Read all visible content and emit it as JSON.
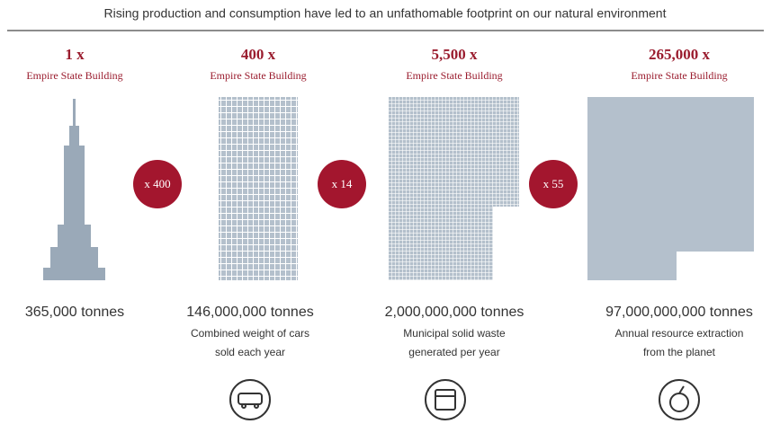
{
  "title": "Rising production and consumption have led to an unfathomable footprint on our natural environment",
  "panels": [
    {
      "multiple": "1 x",
      "unit": "Empire State Building",
      "amount": "365,000 tonnes",
      "description": []
    },
    {
      "multiple": "400 x",
      "unit": "Empire State Building",
      "amount": "146,000,000 tonnes",
      "description": [
        "Combined weight of cars",
        "sold each year"
      ]
    },
    {
      "multiple": "5,500 x",
      "unit": "Empire State Building",
      "amount": "2,000,000,000 tonnes",
      "description": [
        "Municipal solid waste",
        "generated per year"
      ]
    },
    {
      "multiple": "265,000 x",
      "unit": "Empire State Building",
      "amount": "97,000,000,000 tonnes",
      "description": [
        "Annual resource extraction",
        "from the planet"
      ]
    }
  ],
  "connectors": [
    "x 400",
    "x 14",
    "x 55"
  ]
}
